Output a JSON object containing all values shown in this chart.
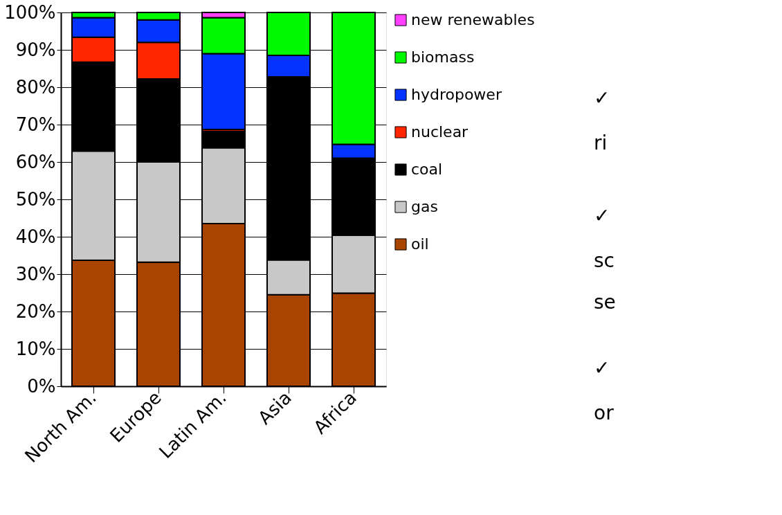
{
  "chart_data": {
    "type": "bar",
    "stacked": true,
    "categories": [
      "North Am.",
      "Europe",
      "Latin Am.",
      "Asia",
      "Africa"
    ],
    "series": [
      {
        "name": "oil",
        "color": "#a94300",
        "values": [
          33.7,
          33.2,
          43.5,
          24.5,
          24.9
        ]
      },
      {
        "name": "gas",
        "color": "#c8c8c8",
        "values": [
          29.2,
          26.8,
          20.3,
          9.3,
          15.5
        ]
      },
      {
        "name": "coal",
        "color": "#000000",
        "values": [
          23.8,
          22.2,
          4.4,
          49.0,
          20.6
        ]
      },
      {
        "name": "nuclear",
        "color": "#ff2600",
        "values": [
          6.7,
          9.8,
          0.5,
          null,
          null
        ]
      },
      {
        "name": "hydropower",
        "color": "#0433ff",
        "values": [
          5.2,
          6.0,
          20.3,
          5.7,
          3.7
        ]
      },
      {
        "name": "biomass",
        "color": "#00f900",
        "values": [
          1.4,
          2.0,
          9.6,
          11.5,
          35.3
        ]
      },
      {
        "name": "new renewables",
        "color": "#ff40ff",
        "values": [
          null,
          null,
          1.4,
          null,
          null
        ]
      }
    ],
    "ylim": [
      0,
      100
    ],
    "yticks": [
      {
        "value": 0,
        "label": "0%"
      },
      {
        "value": 10,
        "label": "10%"
      },
      {
        "value": 20,
        "label": "20%"
      },
      {
        "value": 30,
        "label": "30%"
      },
      {
        "value": 40,
        "label": "40%"
      },
      {
        "value": 50,
        "label": "50%"
      },
      {
        "value": 60,
        "label": "60%"
      },
      {
        "value": 70,
        "label": "70%"
      },
      {
        "value": 80,
        "label": "80%"
      },
      {
        "value": 90,
        "label": "90%"
      },
      {
        "value": 100,
        "label": "100%"
      }
    ],
    "grid": "y",
    "legend": "right",
    "annotations": [
      "✓",
      "ri",
      "✓",
      "sc",
      "se",
      "✓",
      "or"
    ]
  }
}
